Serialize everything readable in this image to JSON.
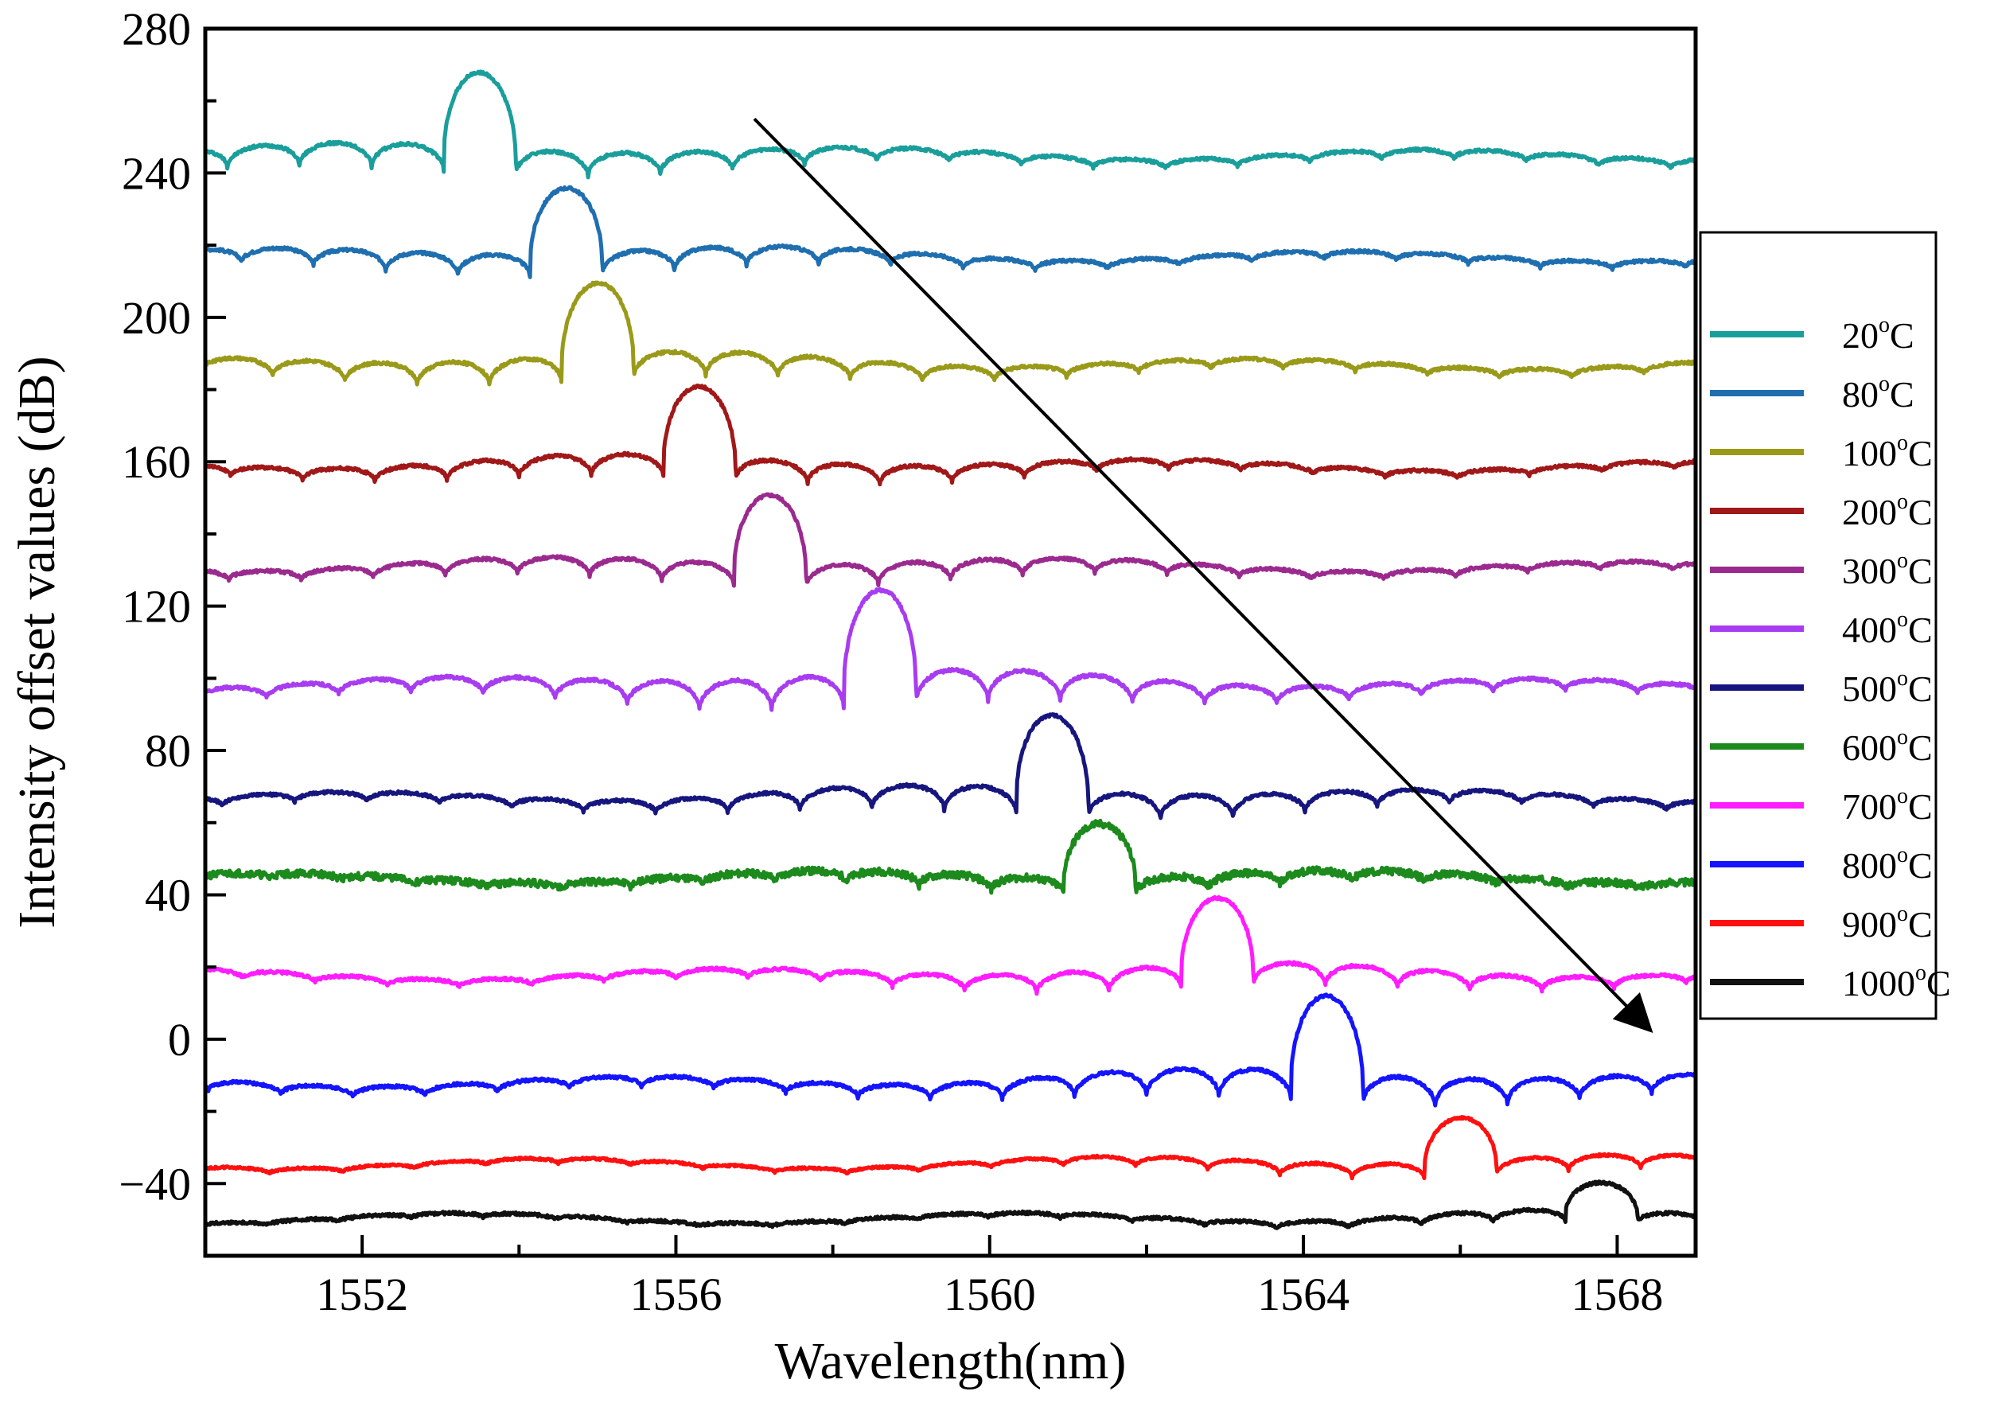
{
  "chart_data": {
    "type": "line",
    "title": "",
    "xlabel": "Wavelength(nm)",
    "ylabel": "Intensity offset values (dB)",
    "xlim": [
      1550,
      1569
    ],
    "ylim": [
      -60,
      280
    ],
    "xticks": [
      1552,
      1556,
      1560,
      1564,
      1568
    ],
    "yticks": [
      -40,
      0,
      40,
      80,
      120,
      160,
      200,
      240,
      280
    ],
    "xtick_labels": [
      "1552",
      "1556",
      "1560",
      "1564",
      "1568"
    ],
    "ytick_labels": [
      "−40",
      "0",
      "40",
      "80",
      "120",
      "160",
      "200",
      "240",
      "280"
    ],
    "grid": false,
    "legend_position": "right",
    "annotations": [
      {
        "type": "arrow",
        "from": [
          1557.0,
          255
        ],
        "to": [
          1568.4,
          3
        ],
        "meaning": "resonance peak shifts to longer wavelength with temperature"
      }
    ],
    "series": [
      {
        "name": "20°C",
        "temp": "20",
        "unit": "°C",
        "color": "#1a9e9b",
        "baseline": 244,
        "peak_wavelength": 1553.5,
        "peak_value": 268,
        "fringe_amplitude": 7,
        "noise": 0.4
      },
      {
        "name": "80°C",
        "temp": "80",
        "unit": "°C",
        "color": "#1f6fb0",
        "baseline": 216,
        "peak_wavelength": 1554.6,
        "peak_value": 237,
        "fringe_amplitude": 6,
        "noise": 0.4
      },
      {
        "name": "100°C",
        "temp": "100",
        "unit": "°C",
        "color": "#9a9a1a",
        "baseline": 186,
        "peak_wavelength": 1555.0,
        "peak_value": 209,
        "fringe_amplitude": 7,
        "noise": 0.4
      },
      {
        "name": "200°C",
        "temp": "200",
        "unit": "°C",
        "color": "#a01818",
        "baseline": 158,
        "peak_wavelength": 1556.3,
        "peak_value": 180,
        "fringe_amplitude": 6,
        "noise": 0.4
      },
      {
        "name": "300°C",
        "temp": "300",
        "unit": "°C",
        "color": "#9b2a8f",
        "baseline": 130,
        "peak_wavelength": 1557.2,
        "peak_value": 152,
        "fringe_amplitude": 6,
        "noise": 0.4
      },
      {
        "name": "400°C",
        "temp": "400",
        "unit": "°C",
        "color": "#a83cf0",
        "baseline": 97,
        "peak_wavelength": 1558.6,
        "peak_value": 124,
        "fringe_amplitude": 9,
        "noise": 0.4
      },
      {
        "name": "500°C",
        "temp": "500",
        "unit": "°C",
        "color": "#16167e",
        "baseline": 66,
        "peak_wavelength": 1560.8,
        "peak_value": 90,
        "fringe_amplitude": 7,
        "noise": 0.4
      },
      {
        "name": "600°C",
        "temp": "600",
        "unit": "°C",
        "color": "#1c8a1c",
        "baseline": 44,
        "peak_wavelength": 1561.4,
        "peak_value": 61,
        "fringe_amplitude": 4,
        "noise": 1.0
      },
      {
        "name": "700°C",
        "temp": "700",
        "unit": "°C",
        "color": "#ff1cff",
        "baseline": 17,
        "peak_wavelength": 1562.9,
        "peak_value": 38,
        "fringe_amplitude": 6,
        "noise": 0.4
      },
      {
        "name": "800°C",
        "temp": "800",
        "unit": "°C",
        "color": "#1414ff",
        "baseline": -13,
        "peak_wavelength": 1564.3,
        "peak_value": 12,
        "fringe_amplitude": 8,
        "noise": 0.4
      },
      {
        "name": "900°C",
        "temp": "900",
        "unit": "°C",
        "color": "#ff1010",
        "baseline": -35,
        "peak_wavelength": 1566.0,
        "peak_value": -21,
        "fringe_amplitude": 4,
        "noise": 0.3
      },
      {
        "name": "1000°C",
        "temp": "1000",
        "unit": "°C",
        "color": "#111111",
        "baseline": -50,
        "peak_wavelength": 1567.8,
        "peak_value": -41,
        "fringe_amplitude": 3,
        "noise": 0.4
      }
    ]
  }
}
